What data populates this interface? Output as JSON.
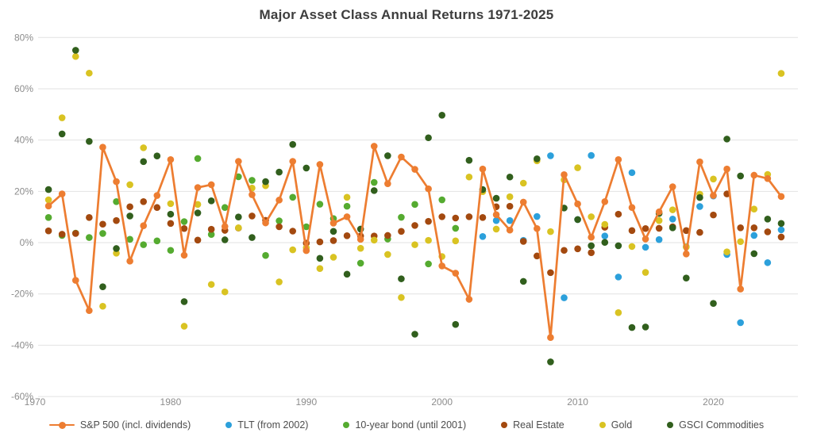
{
  "chart_data": {
    "type": "scatter",
    "title": "Major Asset Class Annual Returns 1971-2025",
    "grid": "horizontal-only",
    "legend_position": "bottom",
    "background": "#ffffff",
    "grid_color": "#e2e2e2",
    "tick_label_color": "#8c8c8c",
    "title_color": "#3d3d3d",
    "y_axis": {
      "unit": "%",
      "min": -60,
      "max": 80,
      "tick_values": [
        80,
        60,
        40,
        20,
        0,
        -20,
        -40,
        -60
      ],
      "tick_labels": [
        "80%",
        "60%",
        "40%",
        "20%",
        "0%",
        "-20%",
        "-40%",
        "-60%"
      ]
    },
    "x_axis": {
      "min": 1970,
      "max": 2026,
      "tick_values": [
        1970,
        1980,
        1990,
        2000,
        2010,
        2020
      ],
      "tick_labels": [
        "1970",
        "1980",
        "1990",
        "2000",
        "2010",
        "2020"
      ]
    },
    "years": [
      1971,
      1972,
      1973,
      1974,
      1975,
      1976,
      1977,
      1978,
      1979,
      1980,
      1981,
      1982,
      1983,
      1984,
      1985,
      1986,
      1987,
      1988,
      1989,
      1990,
      1991,
      1992,
      1993,
      1994,
      1995,
      1996,
      1997,
      1998,
      1999,
      2000,
      2001,
      2002,
      2003,
      2004,
      2005,
      2006,
      2007,
      2008,
      2009,
      2010,
      2011,
      2012,
      2013,
      2014,
      2015,
      2016,
      2017,
      2018,
      2019,
      2020,
      2021,
      2022,
      2023,
      2024,
      2025
    ],
    "series": [
      {
        "name": "S&P 500 (incl. dividends)",
        "type": "line",
        "color": "#ED7D31",
        "values": [
          14.3,
          19.0,
          -14.7,
          -26.5,
          37.2,
          23.8,
          -7.2,
          6.6,
          18.4,
          32.4,
          -4.9,
          21.5,
          22.6,
          6.3,
          31.7,
          18.7,
          7.7,
          16.6,
          31.7,
          -3.1,
          30.5,
          7.6,
          10.1,
          1.3,
          37.6,
          23.0,
          33.4,
          28.6,
          21.0,
          -9.1,
          -11.9,
          -22.1,
          28.7,
          10.9,
          4.9,
          15.8,
          5.5,
          -37.0,
          26.5,
          15.1,
          2.1,
          16.0,
          32.4,
          13.7,
          1.4,
          12.0,
          21.8,
          -4.4,
          31.5,
          18.4,
          28.7,
          -18.1,
          26.3,
          25.0,
          18.0
        ]
      },
      {
        "name": "TLT (from 2002)",
        "type": "scatter",
        "color": "#2CA0DB",
        "values": [
          null,
          null,
          null,
          null,
          null,
          null,
          null,
          null,
          null,
          null,
          null,
          null,
          null,
          null,
          null,
          null,
          null,
          null,
          null,
          null,
          null,
          null,
          null,
          null,
          null,
          null,
          null,
          null,
          null,
          null,
          null,
          null,
          2.4,
          8.6,
          8.6,
          0.9,
          10.2,
          33.9,
          -21.5,
          9.0,
          34.0,
          2.6,
          -13.4,
          27.3,
          -1.8,
          1.2,
          9.2,
          -1.6,
          14.1,
          18.2,
          -4.6,
          -31.2,
          2.8,
          -7.8,
          5.0
        ]
      },
      {
        "name": "10-year bond (until 2001)",
        "type": "scatter",
        "color": "#55AB30",
        "values": [
          9.8,
          2.8,
          3.7,
          2.0,
          3.6,
          16.0,
          1.3,
          -0.8,
          0.7,
          -3.0,
          8.2,
          32.8,
          3.2,
          13.7,
          25.7,
          24.3,
          -5.0,
          8.5,
          17.7,
          6.2,
          15.0,
          9.4,
          14.2,
          -8.0,
          23.5,
          1.4,
          9.9,
          14.9,
          -8.3,
          16.7,
          5.6,
          null,
          null,
          null,
          null,
          null,
          null,
          null,
          null,
          null,
          null,
          null,
          null,
          null,
          null,
          null,
          null,
          null,
          null,
          null,
          null,
          null,
          null,
          null,
          null
        ]
      },
      {
        "name": "Real Estate",
        "type": "scatter",
        "color": "#A3490F",
        "values": [
          4.6,
          3.3,
          3.6,
          9.8,
          7.2,
          8.6,
          14.0,
          16.0,
          13.7,
          7.5,
          5.5,
          1.0,
          5.2,
          4.8,
          5.7,
          10.4,
          8.7,
          6.2,
          4.5,
          -0.2,
          0.3,
          0.8,
          2.7,
          2.6,
          2.6,
          2.8,
          4.4,
          6.7,
          8.3,
          10.1,
          9.6,
          10.1,
          9.8,
          14.0,
          14.2,
          0.5,
          -5.2,
          -11.7,
          -3.0,
          -2.4,
          -3.9,
          6.0,
          11.1,
          4.7,
          5.5,
          5.6,
          6.2,
          4.7,
          4.0,
          10.8,
          19.0,
          5.8,
          5.8,
          4.2,
          2.2
        ]
      },
      {
        "name": "Gold",
        "type": "scatter",
        "color": "#D9C322",
        "values": [
          16.7,
          48.7,
          72.6,
          66.1,
          -24.8,
          -4.1,
          22.6,
          37.0,
          null,
          15.2,
          -32.6,
          14.9,
          -16.3,
          -19.2,
          5.8,
          21.3,
          22.2,
          -15.3,
          -2.8,
          -2.0,
          -10.1,
          -5.7,
          17.7,
          -2.2,
          1.0,
          -4.6,
          -21.4,
          -0.8,
          0.9,
          -5.4,
          0.7,
          25.6,
          19.9,
          5.3,
          17.9,
          23.2,
          31.9,
          4.3,
          24.5,
          29.2,
          10.1,
          7.1,
          -27.3,
          -1.5,
          -11.6,
          8.6,
          12.8,
          -1.7,
          18.9,
          24.8,
          -3.6,
          0.4,
          13.1,
          26.6,
          66.0
        ]
      },
      {
        "name": "GSCI Commodities",
        "type": "scatter",
        "color": "#315F1D",
        "values": [
          20.7,
          42.4,
          75.0,
          39.5,
          -17.2,
          -2.3,
          10.4,
          31.6,
          33.8,
          11.1,
          -23.0,
          11.6,
          16.3,
          1.1,
          10.0,
          2.0,
          23.8,
          27.5,
          38.3,
          29.1,
          -6.1,
          4.4,
          -12.3,
          5.3,
          20.3,
          33.9,
          -14.1,
          -35.7,
          40.9,
          49.7,
          -31.9,
          32.1,
          20.7,
          17.3,
          25.6,
          -15.1,
          32.7,
          -46.5,
          13.5,
          9.0,
          -1.2,
          0.1,
          -1.2,
          -33.1,
          -32.9,
          11.4,
          5.8,
          -13.8,
          17.6,
          -23.7,
          40.4,
          26.0,
          -4.3,
          9.2,
          7.5
        ]
      }
    ]
  }
}
